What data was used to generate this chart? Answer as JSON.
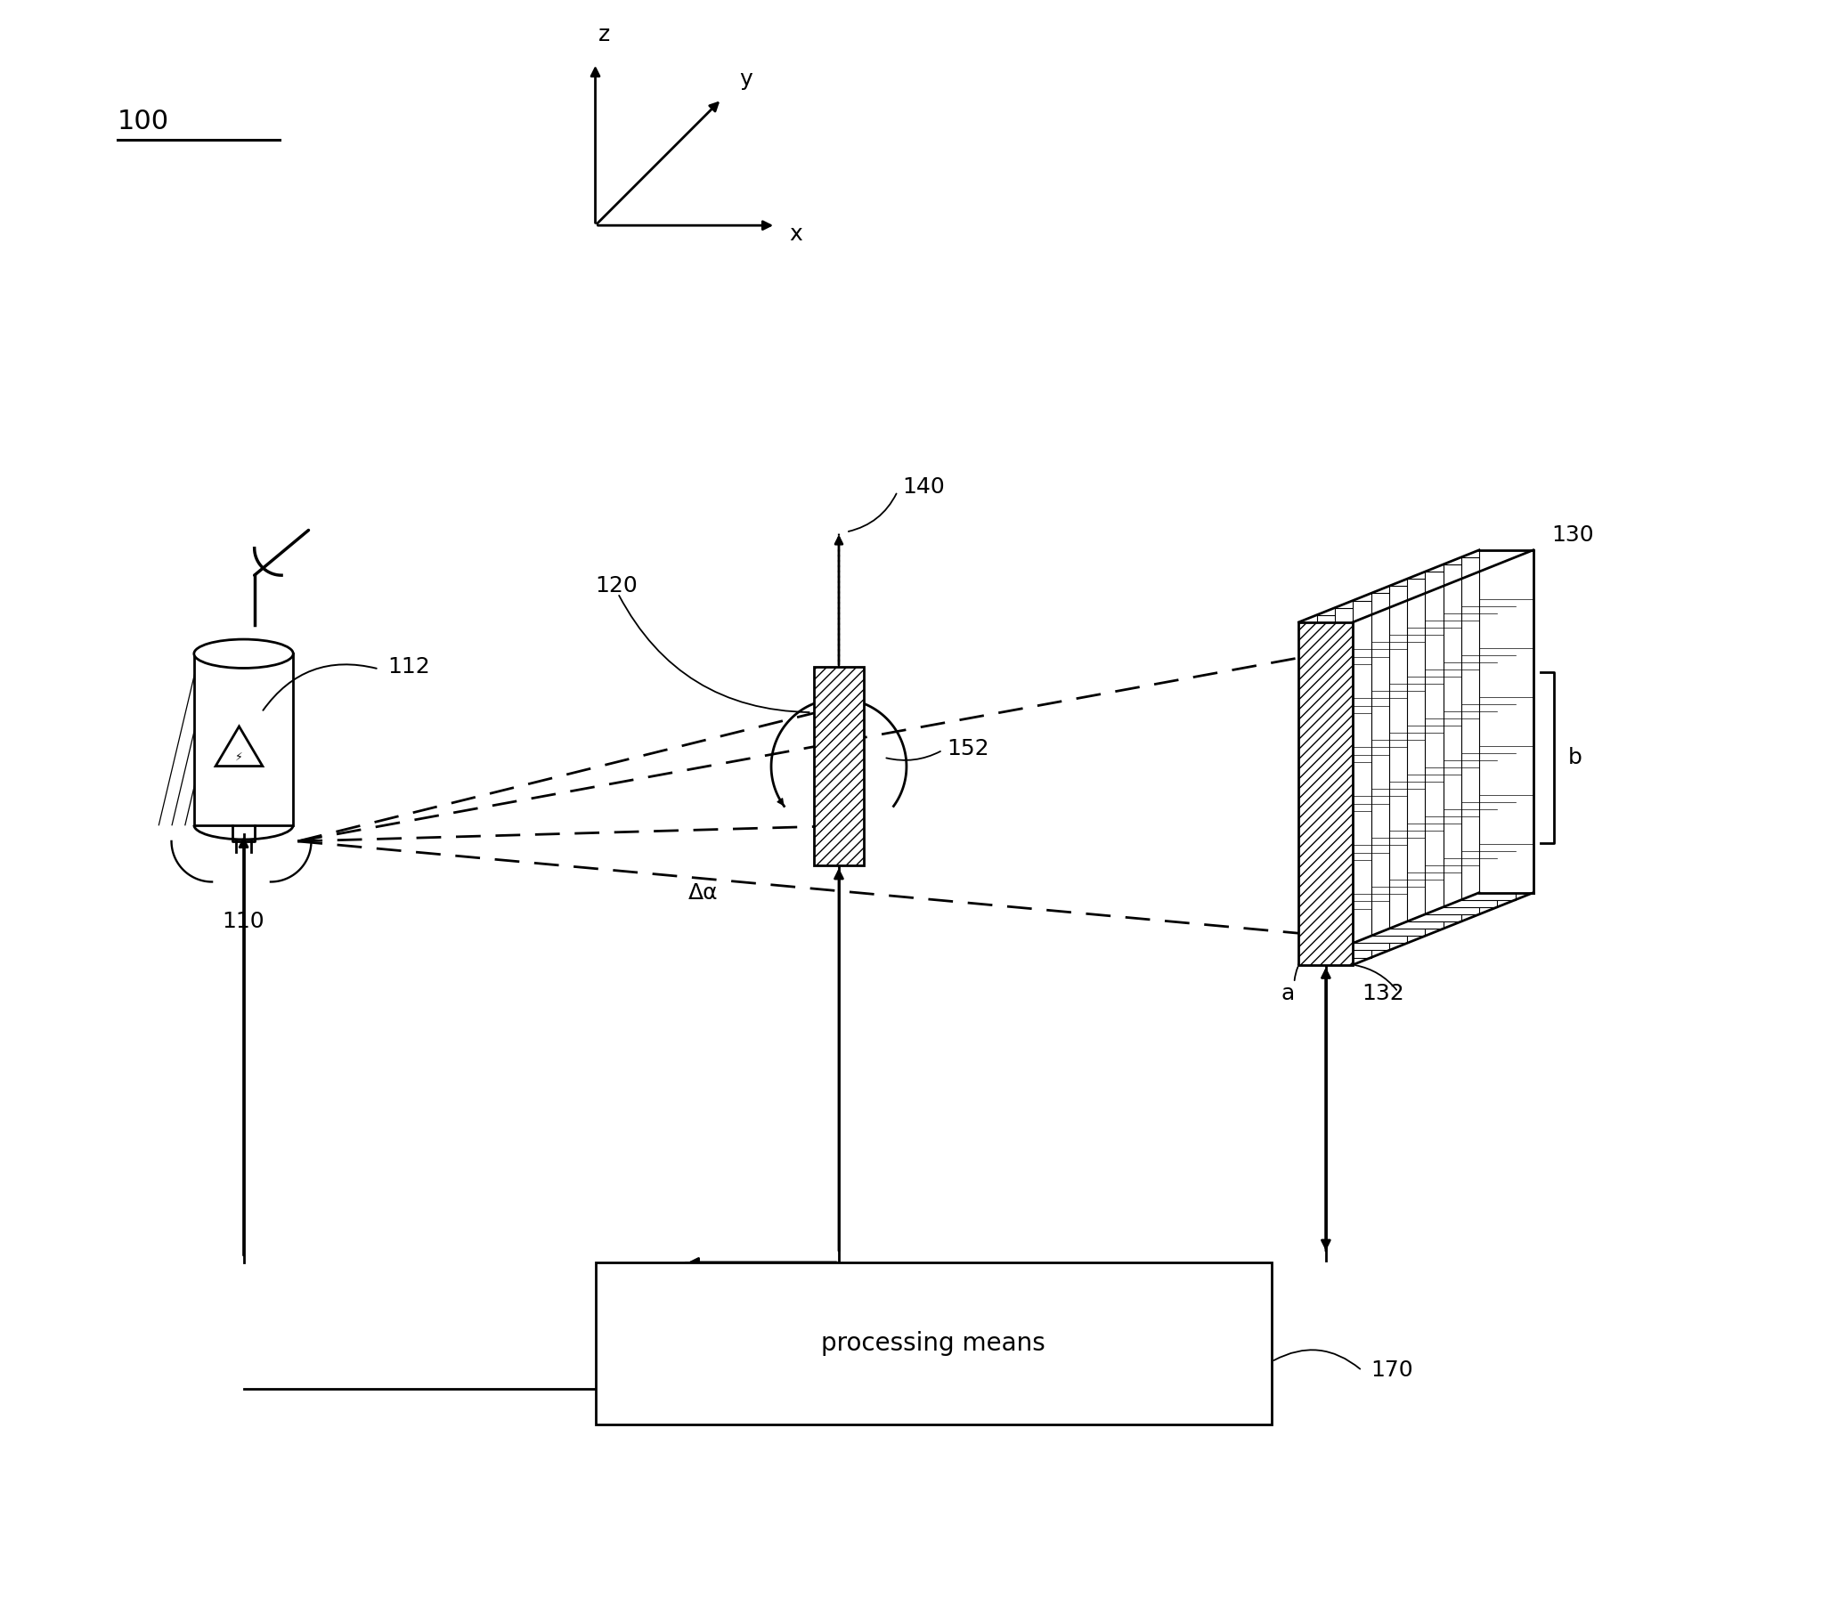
{
  "bg_color": "#ffffff",
  "line_color": "#000000",
  "label_100": "100",
  "label_110": "110",
  "label_112": "112",
  "label_120": "120",
  "label_130": "130",
  "label_132": "132",
  "label_140": "140",
  "label_152": "152",
  "label_170": "170",
  "label_a": "a",
  "label_b": "b",
  "label_dalpha": "Δα",
  "label_x": "x",
  "label_y": "y",
  "label_z": "z",
  "processing_text": "processing means",
  "fig_width": 20.46,
  "fig_height": 18.23
}
